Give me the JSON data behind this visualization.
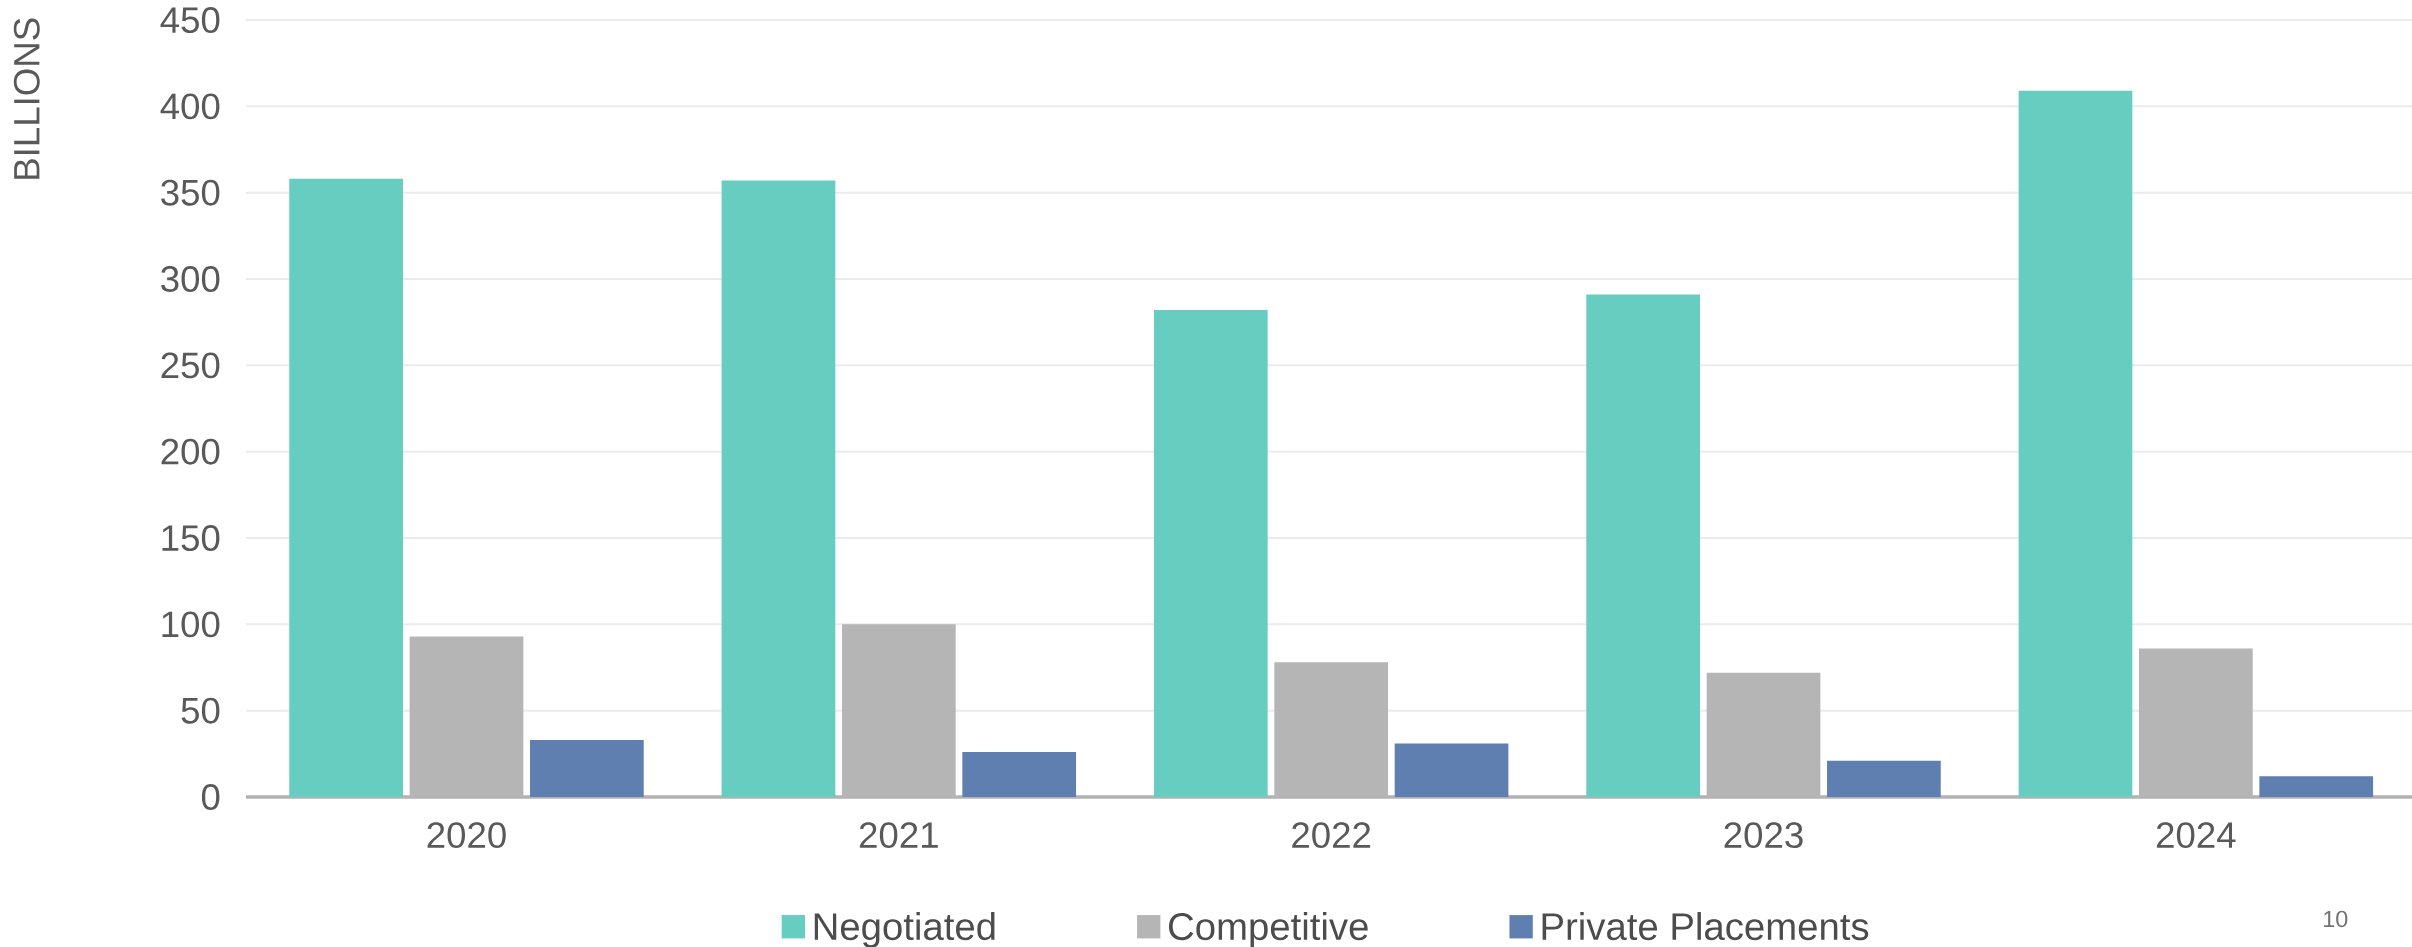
{
  "chart_data": {
    "type": "bar",
    "ylabel": "BILLIONS",
    "categories": [
      "2020",
      "2021",
      "2022",
      "2023",
      "2024"
    ],
    "series": [
      {
        "name": "Negotiated",
        "color": "#66cdc0",
        "values": [
          358,
          357,
          282,
          291,
          409
        ]
      },
      {
        "name": "Competitive",
        "color": "#b5b5b5",
        "values": [
          93,
          100,
          78,
          72,
          86
        ]
      },
      {
        "name": "Private Placements",
        "color": "#5f7fb0",
        "values": [
          33,
          26,
          31,
          21,
          12
        ]
      }
    ],
    "ylim": [
      0,
      450
    ],
    "yticks": [
      0,
      50,
      100,
      150,
      200,
      250,
      300,
      350,
      400,
      450
    ],
    "grid": "y",
    "legend": "bottom",
    "annotations": [
      "10"
    ]
  }
}
